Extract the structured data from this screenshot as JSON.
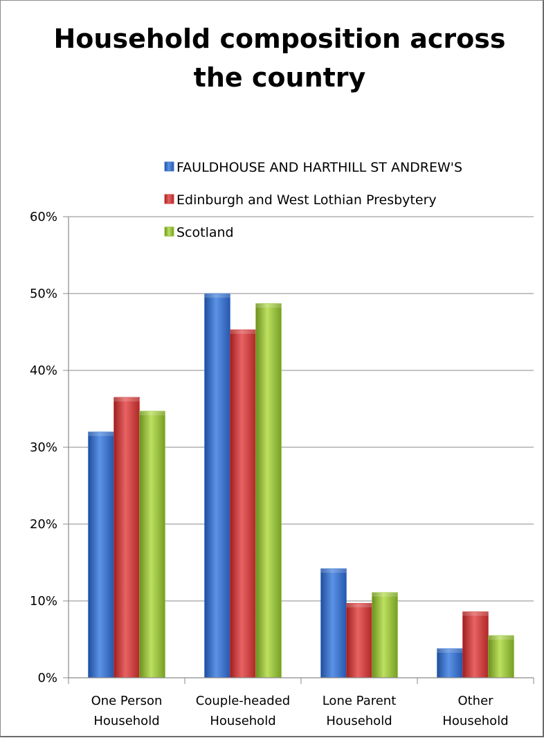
{
  "chart_data": {
    "type": "bar",
    "title_lines": [
      "Household composition across",
      "the country"
    ],
    "categories": [
      [
        "One Person",
        "Household"
      ],
      [
        "Couple-headed",
        "Household"
      ],
      [
        "Lone Parent",
        "Household"
      ],
      [
        "Other",
        "Household"
      ]
    ],
    "series": [
      {
        "name": "FAULDHOUSE AND HARTHILL ST ANDREW'S",
        "color": "#3a74d0",
        "values": [
          32.0,
          50.0,
          14.2,
          3.8
        ]
      },
      {
        "name": "Edinburgh and West Lothian Presbytery",
        "color": "#d23b3b",
        "values": [
          36.5,
          45.3,
          9.7,
          8.6
        ]
      },
      {
        "name": "Scotland",
        "color": "#96c03a",
        "values": [
          34.7,
          48.7,
          11.1,
          5.5
        ]
      }
    ],
    "ylim": [
      0,
      60
    ],
    "y_ticks": [
      0,
      10,
      20,
      30,
      40,
      50,
      60
    ],
    "y_tick_labels": [
      "0%",
      "10%",
      "20%",
      "30%",
      "40%",
      "50%",
      "60%"
    ],
    "grid": true,
    "legend_position": "top"
  }
}
